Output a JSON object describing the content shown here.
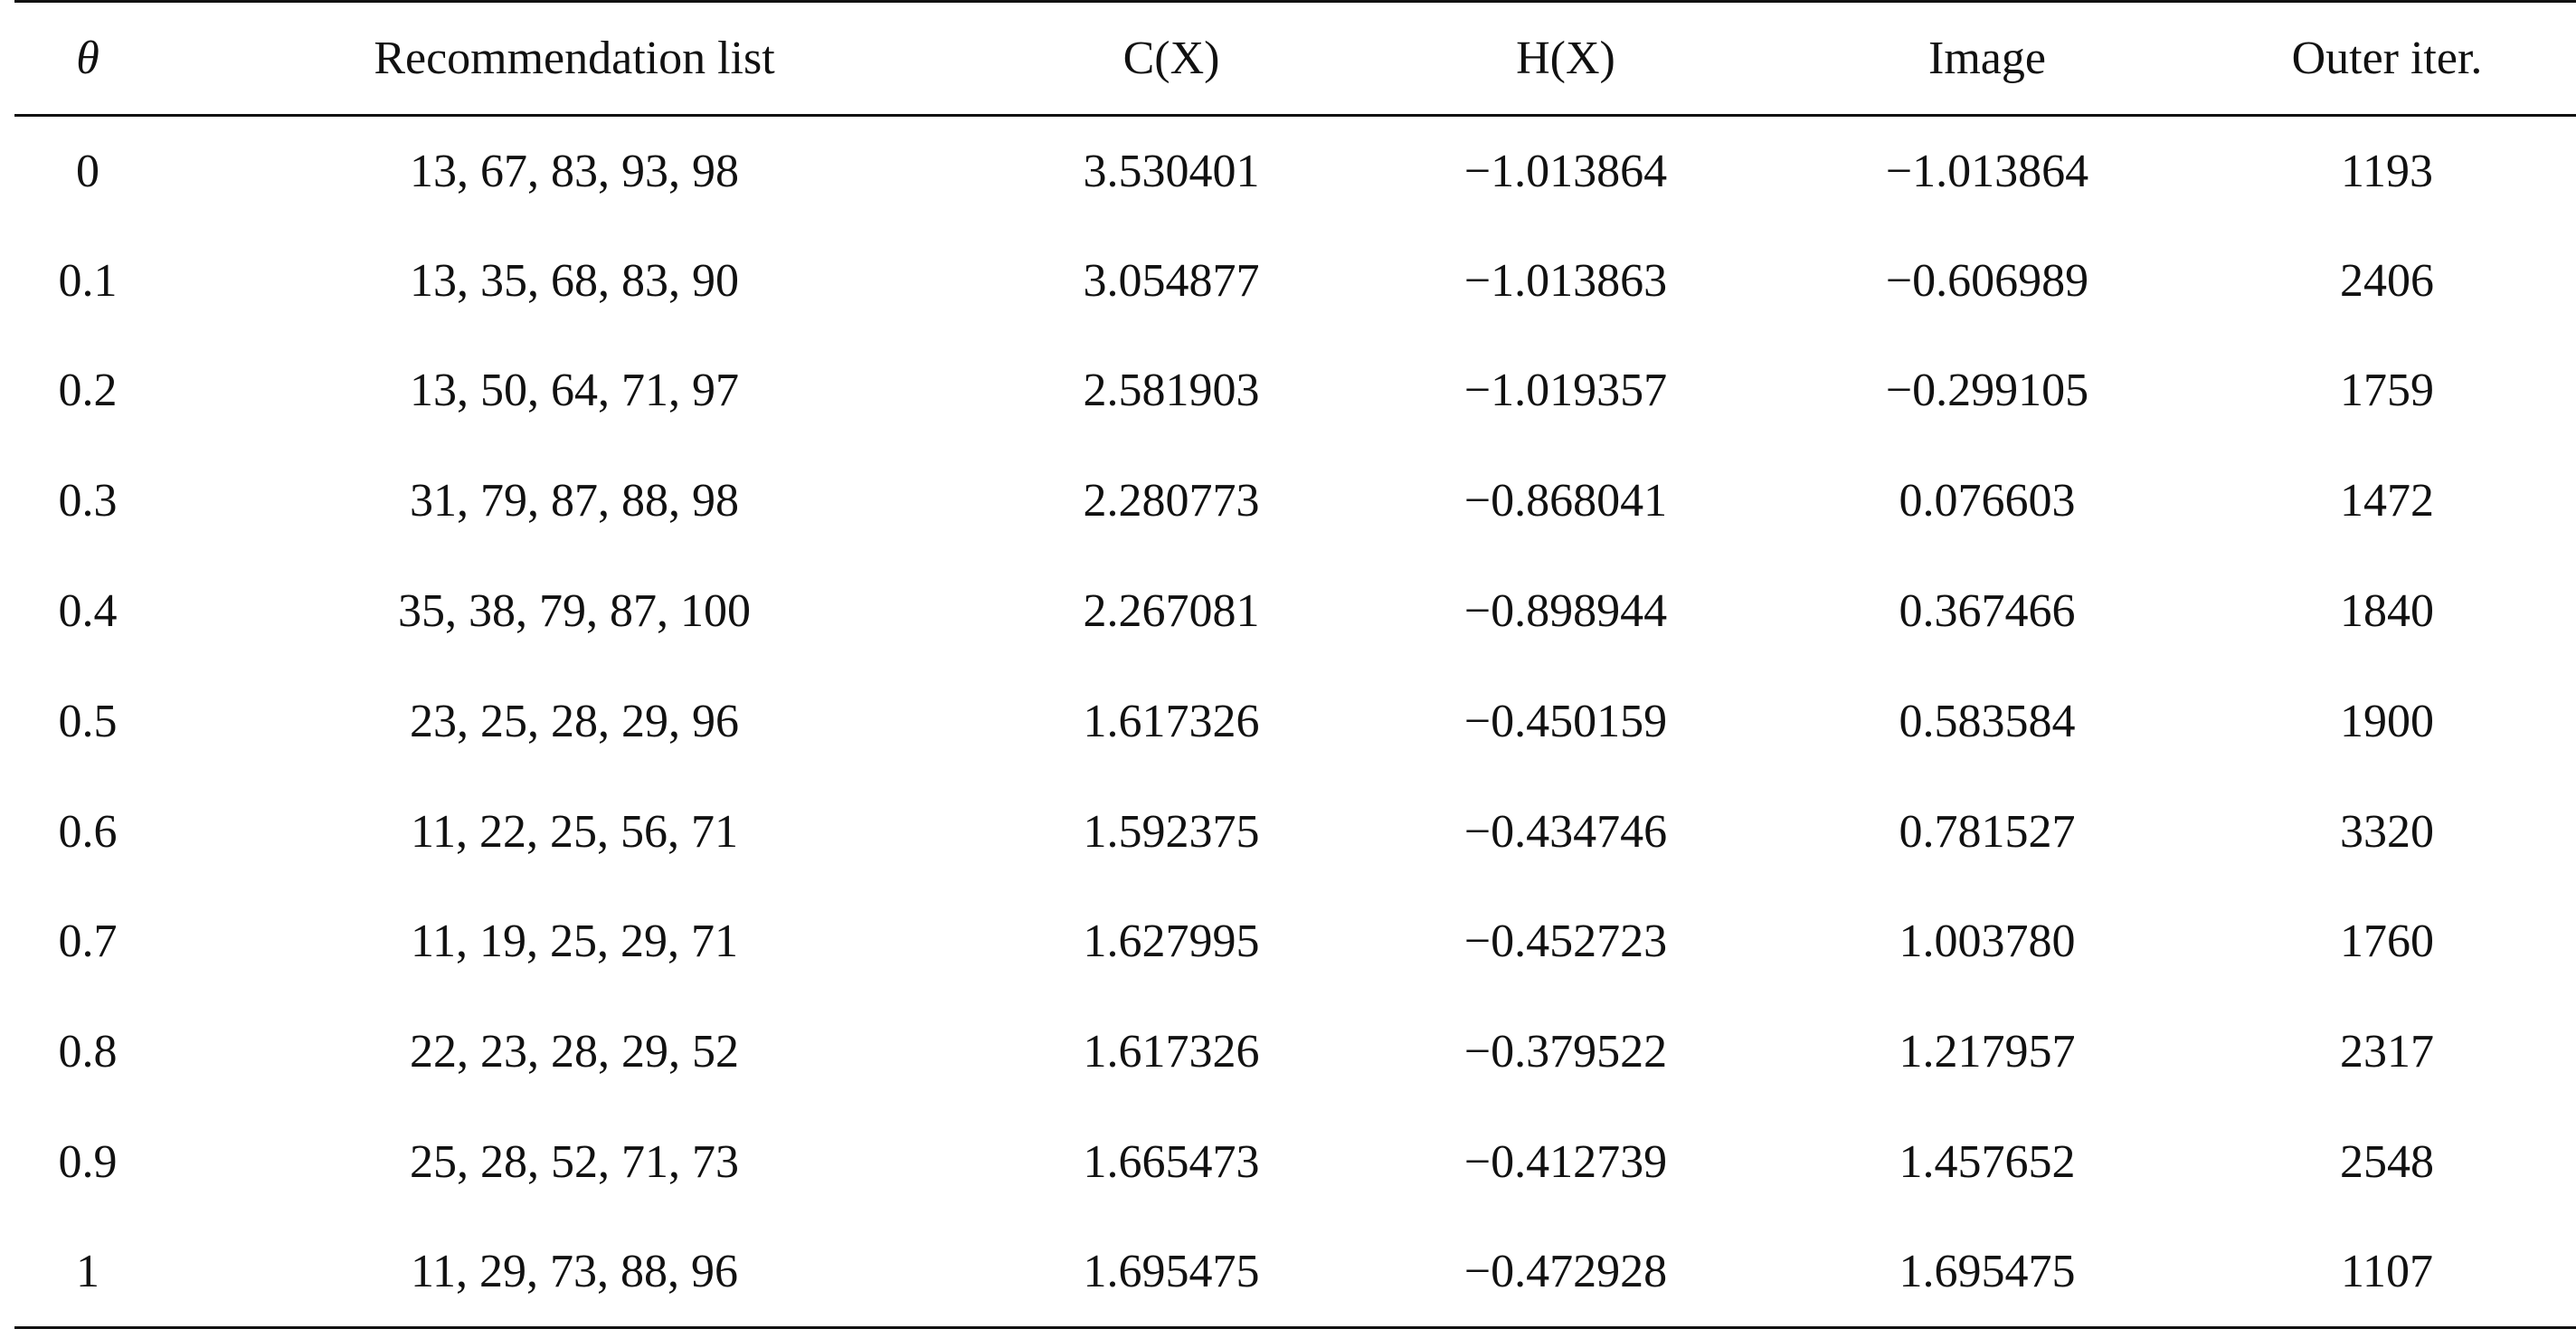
{
  "table": {
    "headers": [
      "θ",
      "Recommendation list",
      "C(X)",
      "H(X)",
      "Image",
      "Outer iter."
    ],
    "rows": [
      [
        "0",
        "13, 67, 83, 93, 98",
        "3.530401",
        "−1.013864",
        "−1.013864",
        "1193"
      ],
      [
        "0.1",
        "13, 35, 68, 83, 90",
        "3.054877",
        "−1.013863",
        "−0.606989",
        "2406"
      ],
      [
        "0.2",
        "13, 50, 64, 71, 97",
        "2.581903",
        "−1.019357",
        "−0.299105",
        "1759"
      ],
      [
        "0.3",
        "31, 79, 87, 88, 98",
        "2.280773",
        "−0.868041",
        "0.076603",
        "1472"
      ],
      [
        "0.4",
        "35, 38, 79, 87, 100",
        "2.267081",
        "−0.898944",
        "0.367466",
        "1840"
      ],
      [
        "0.5",
        "23, 25, 28, 29, 96",
        "1.617326",
        "−0.450159",
        "0.583584",
        "1900"
      ],
      [
        "0.6",
        "11, 22, 25, 56, 71",
        "1.592375",
        "−0.434746",
        "0.781527",
        "3320"
      ],
      [
        "0.7",
        "11, 19, 25, 29, 71",
        "1.627995",
        "−0.452723",
        "1.003780",
        "1760"
      ],
      [
        "0.8",
        "22, 23, 28, 29, 52",
        "1.617326",
        "−0.379522",
        "1.217957",
        "2317"
      ],
      [
        "0.9",
        "25, 28, 52, 71, 73",
        "1.665473",
        "−0.412739",
        "1.457652",
        "2548"
      ],
      [
        "1",
        "11, 29, 73, 88, 96",
        "1.695475",
        "−0.472928",
        "1.695475",
        "1107"
      ]
    ]
  }
}
